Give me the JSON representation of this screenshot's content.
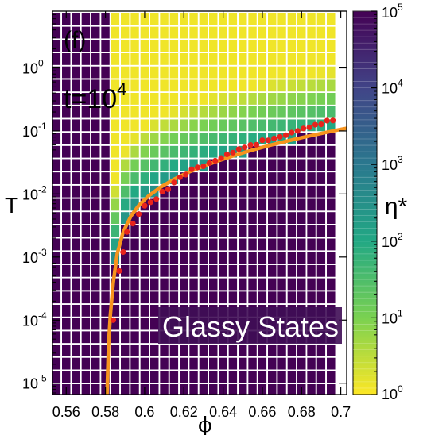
{
  "chart_data": {
    "type": "heatmap",
    "panel_label": "(f)",
    "time_label_base": "t=10",
    "time_label_exp": "4",
    "region_label": "Glassy States",
    "xlabel": "ϕ",
    "ylabel": "T",
    "colorbar_label": "η*",
    "xlim": [
      0.553,
      0.703
    ],
    "ylim_log10": [
      -5.18,
      0.9
    ],
    "x_ticks": [
      {
        "value": 0.56,
        "label": "0.56"
      },
      {
        "value": 0.58,
        "label": "0.58"
      },
      {
        "value": 0.6,
        "label": "0.6"
      },
      {
        "value": 0.62,
        "label": "0.62"
      },
      {
        "value": 0.64,
        "label": "0.64"
      },
      {
        "value": 0.66,
        "label": "0.66"
      },
      {
        "value": 0.68,
        "label": "0.68"
      },
      {
        "value": 0.7,
        "label": "0.7"
      }
    ],
    "y_ticks": [
      {
        "exp": 0,
        "base": "10",
        "sup": "0"
      },
      {
        "exp": -1,
        "base": "10",
        "sup": "-1"
      },
      {
        "exp": -2,
        "base": "10",
        "sup": "-2"
      },
      {
        "exp": -3,
        "base": "10",
        "sup": "-3"
      },
      {
        "exp": -4,
        "base": "10",
        "sup": "-4"
      },
      {
        "exp": -5,
        "base": "10",
        "sup": "-5"
      }
    ],
    "colorbar_ticks": [
      {
        "exp": 0,
        "base": "10",
        "sup": "0"
      },
      {
        "exp": 1,
        "base": "10",
        "sup": "1"
      },
      {
        "exp": 2,
        "base": "10",
        "sup": "2"
      },
      {
        "exp": 3,
        "base": "10",
        "sup": "3"
      },
      {
        "exp": 4,
        "base": "10",
        "sup": "4"
      },
      {
        "exp": 5,
        "base": "10",
        "sup": "5"
      }
    ],
    "colorbar_range_log10": [
      0,
      5
    ],
    "colormap": [
      "#fde725",
      "#7ad151",
      "#22a884",
      "#2a788e",
      "#414487",
      "#440154"
    ],
    "grid": {
      "x_start": 0.555,
      "x_step": 0.005,
      "x_count": 29,
      "y_start_log10": -5.11,
      "y_step_log10": 0.21,
      "y_count": 29
    },
    "series": [
      {
        "type": "scatter",
        "color": "#e8231c",
        "points": [
          [
            0.584,
            0.0001
          ],
          [
            0.587,
            0.0006
          ],
          [
            0.589,
            0.0012
          ],
          [
            0.591,
            0.0025
          ],
          [
            0.594,
            0.0034
          ],
          [
            0.597,
            0.0048
          ],
          [
            0.6,
            0.0065
          ],
          [
            0.603,
            0.0074
          ],
          [
            0.606,
            0.0083
          ],
          [
            0.609,
            0.0109
          ],
          [
            0.612,
            0.0119
          ],
          [
            0.615,
            0.0152
          ],
          [
            0.618,
            0.0184
          ],
          [
            0.621,
            0.0203
          ],
          [
            0.624,
            0.0247
          ],
          [
            0.627,
            0.0264
          ],
          [
            0.63,
            0.0275
          ],
          [
            0.633,
            0.0309
          ],
          [
            0.636,
            0.0337
          ],
          [
            0.639,
            0.0372
          ],
          [
            0.642,
            0.0426
          ],
          [
            0.645,
            0.0452
          ],
          [
            0.648,
            0.0515
          ],
          [
            0.651,
            0.0548
          ],
          [
            0.654,
            0.06
          ],
          [
            0.657,
            0.0604
          ],
          [
            0.66,
            0.0711
          ],
          [
            0.663,
            0.0709
          ],
          [
            0.666,
            0.0761
          ],
          [
            0.669,
            0.0808
          ],
          [
            0.672,
            0.0857
          ],
          [
            0.675,
            0.0942
          ],
          [
            0.678,
            0.1
          ],
          [
            0.681,
            0.1095
          ],
          [
            0.684,
            0.1141
          ],
          [
            0.687,
            0.1255
          ],
          [
            0.69,
            0.1272
          ],
          [
            0.693,
            0.1453
          ],
          [
            0.696,
            0.1465
          ]
        ]
      },
      {
        "type": "line",
        "color": "#f7941d",
        "points": [
          [
            0.5808,
            6.56e-06
          ],
          [
            0.5816,
            4.03e-05
          ],
          [
            0.5825,
            0.000121
          ],
          [
            0.584,
            0.000398
          ],
          [
            0.586,
            0.00112
          ],
          [
            0.589,
            0.00248
          ],
          [
            0.593,
            0.00446
          ],
          [
            0.597,
            0.00657
          ],
          [
            0.602,
            0.00933
          ],
          [
            0.608,
            0.0128
          ],
          [
            0.615,
            0.0171
          ],
          [
            0.622,
            0.0219
          ],
          [
            0.63,
            0.0277
          ],
          [
            0.638,
            0.0341
          ],
          [
            0.646,
            0.0411
          ],
          [
            0.655,
            0.0498
          ],
          [
            0.664,
            0.0594
          ],
          [
            0.673,
            0.0696
          ],
          [
            0.682,
            0.0808
          ],
          [
            0.691,
            0.0927
          ],
          [
            0.7,
            0.106
          ],
          [
            0.703,
            0.11
          ]
        ]
      }
    ]
  }
}
